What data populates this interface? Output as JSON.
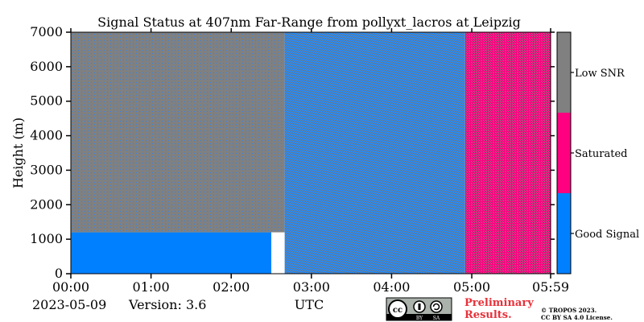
{
  "chart_data": {
    "type": "heatmap",
    "title": "Signal Status at 407nm Far-Range from pollyxt_lacros at Leipzig",
    "xlabel": "UTC",
    "ylabel": "Height (m)",
    "x_range": [
      "00:00",
      "05:59"
    ],
    "ylim": [
      0,
      7000
    ],
    "x_ticks": [
      "00:00",
      "01:00",
      "02:00",
      "03:00",
      "04:00",
      "05:00",
      "05:59"
    ],
    "y_ticks": [
      0,
      1000,
      2000,
      3000,
      4000,
      5000,
      6000,
      7000
    ],
    "grid": false,
    "colorbar": {
      "placement": "right",
      "categories": [
        {
          "label": "Good Signal",
          "color": "#0080ff"
        },
        {
          "label": "Saturated",
          "color": "#ff0080"
        },
        {
          "label": "Low SNR",
          "color": "#808080"
        }
      ]
    },
    "regions": [
      {
        "from": "00:00",
        "to": "02:30",
        "height_from": 0,
        "height_to": 1200,
        "status": "Good Signal"
      },
      {
        "from": "00:00",
        "to": "02:40",
        "height_from": 1200,
        "height_to": 7000,
        "status": "Low SNR"
      },
      {
        "from": "02:40",
        "to": "04:55",
        "height_from": 0,
        "height_to": 7000,
        "status": "Good Signal"
      },
      {
        "from": "04:55",
        "to": "05:59",
        "height_from": 0,
        "height_to": 7000,
        "status": "Saturated"
      }
    ]
  },
  "footer": {
    "date": "2023-05-09",
    "version": "Version: 3.6",
    "license_badge": "cc-by-sa-badge",
    "preliminary_line1": "Preliminary",
    "preliminary_line2": "Results.",
    "copyright_line1": "© TROPOS 2023.",
    "copyright_line2": "CC BY SA 4.0 License."
  },
  "badge": {
    "by": "BY",
    "sa": "SA"
  }
}
